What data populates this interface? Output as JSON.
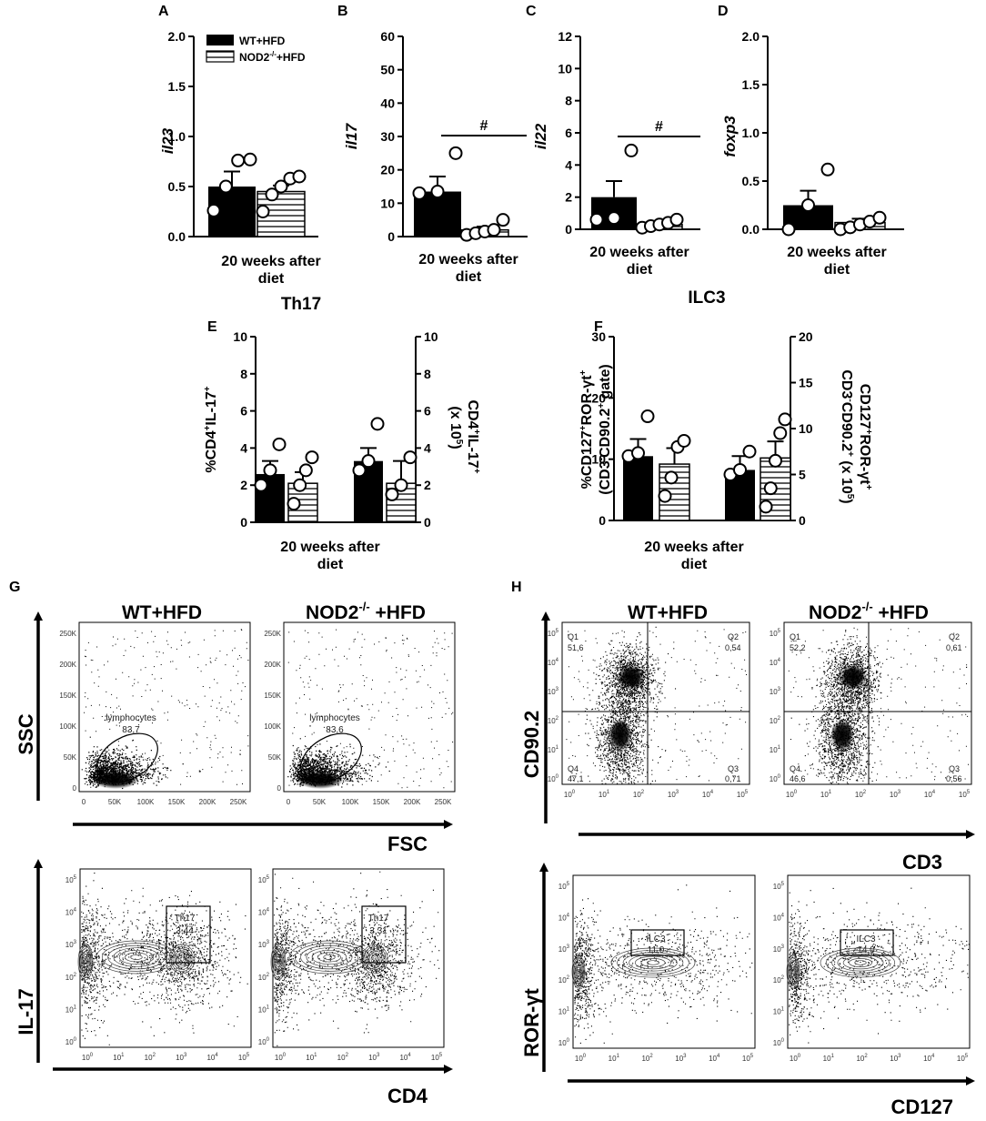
{
  "legend": {
    "wt": "WT+HFD",
    "nod2": "NOD2",
    "nod2_sup": "-/-",
    "nod2_tail": "+HFD"
  },
  "group_label": {
    "line1": "20 weeks after",
    "line2": "diet"
  },
  "significance": "#",
  "titles": {
    "th17": "Th17",
    "ilc3": "ILC3"
  },
  "flow": {
    "g": {
      "col1": "WT+HFD",
      "col2_main": "NOD2",
      "col2_sup": "-/-",
      "col2_tail": " +HFD",
      "axis_ssc": "SSC",
      "axis_fsc": "FSC",
      "axis_il17": "IL-17",
      "axis_cd4": "CD4",
      "scatter_ticks_y": [
        "0",
        "50K",
        "100K",
        "150K",
        "200K",
        "250K"
      ],
      "scatter_ticks_x": [
        "0",
        "50K",
        "100K",
        "150K",
        "200K",
        "250K"
      ],
      "gate_lym": "lymphocytes",
      "lym_wt": "83,7",
      "lym_nod2": "83,6",
      "gate_th17": "Th17",
      "th17_wt": "3,44",
      "th17_nod2": "3,31"
    },
    "h": {
      "col1": "WT+HFD",
      "col2_main": "NOD2",
      "col2_sup": "-/-",
      "col2_tail": " +HFD",
      "axis_cd90": "CD90.2",
      "axis_cd3": "CD3",
      "axis_ror": "ROR-γt",
      "axis_cd127": "CD127",
      "wt_q": {
        "q1": "Q1",
        "q1v": "51,6",
        "q2": "Q2",
        "q2v": "0,54",
        "q3": "Q3",
        "q3v": "0,71",
        "q4": "Q4",
        "q4v": "47,1"
      },
      "nod2_q": {
        "q1": "Q1",
        "q1v": "52,2",
        "q2": "Q2",
        "q2v": "0,61",
        "q3": "Q3",
        "q3v": "0,56",
        "q4": "Q4",
        "q4v": "46,6"
      },
      "gate_ilc3": "ILC3",
      "ilc3_wt": "11,0",
      "ilc3_nod2": "14,0"
    },
    "log_ticks": [
      {
        "b": "10",
        "e": "0"
      },
      {
        "b": "10",
        "e": "1"
      },
      {
        "b": "10",
        "e": "2"
      },
      {
        "b": "10",
        "e": "3"
      },
      {
        "b": "10",
        "e": "4"
      },
      {
        "b": "10",
        "e": "5"
      }
    ]
  },
  "chart_data": [
    {
      "panel": "A",
      "type": "bar",
      "ylabel": "il23",
      "ylim": [
        0,
        2.0
      ],
      "yticks": [
        "0.0",
        "0.5",
        "1.0",
        "1.5",
        "2.0"
      ],
      "series": [
        {
          "name": "WT+HFD",
          "values": [
            0.5
          ],
          "sem": 0.15,
          "points": [
            0.26,
            0.5,
            0.76,
            0.77
          ]
        },
        {
          "name": "NOD2-/-+HFD",
          "values": [
            0.45
          ],
          "sem": 0.06,
          "points": [
            0.25,
            0.42,
            0.5,
            0.58,
            0.6
          ]
        }
      ]
    },
    {
      "panel": "B",
      "type": "bar",
      "ylabel": "il17",
      "ylim": [
        0,
        60
      ],
      "yticks": [
        "0",
        "10",
        "20",
        "30",
        "40",
        "50",
        "60"
      ],
      "series": [
        {
          "name": "WT+HFD",
          "values": [
            13.5
          ],
          "sem": 4.5,
          "points": [
            13.0,
            13.5,
            25.0
          ]
        },
        {
          "name": "NOD2-/-+HFD",
          "values": [
            2.0
          ],
          "sem": 1.0,
          "points": [
            0.5,
            1.0,
            1.5,
            2.0,
            5.0
          ]
        }
      ],
      "annotation": "#"
    },
    {
      "panel": "C",
      "type": "bar",
      "ylabel": "il22",
      "ylim": [
        0,
        12
      ],
      "yticks": [
        "0",
        "2",
        "4",
        "6",
        "8",
        "10",
        "12"
      ],
      "series": [
        {
          "name": "WT+HFD",
          "values": [
            2.0
          ],
          "sem": 1.0,
          "points": [
            0.6,
            0.7,
            4.9
          ]
        },
        {
          "name": "NOD2-/-+HFD",
          "values": [
            0.3
          ],
          "sem": 0.15,
          "points": [
            0.1,
            0.2,
            0.3,
            0.4,
            0.6
          ]
        }
      ],
      "annotation": "#"
    },
    {
      "panel": "D",
      "type": "bar",
      "ylabel": "foxp3",
      "ylim": [
        0,
        2.0
      ],
      "yticks": [
        "0.0",
        "0.5",
        "1.0",
        "1.5",
        "2.0"
      ],
      "series": [
        {
          "name": "WT+HFD",
          "values": [
            0.25
          ],
          "sem": 0.15,
          "points": [
            0.0,
            0.25,
            0.62
          ]
        },
        {
          "name": "NOD2-/-+HFD",
          "values": [
            0.07
          ],
          "sem": 0.04,
          "points": [
            0.0,
            0.02,
            0.05,
            0.08,
            0.12
          ]
        }
      ]
    },
    {
      "panel": "E",
      "type": "bar",
      "ylabel_left": "%CD4+IL-17+",
      "ylabel_right": "CD4+IL-17+ (x 10^5)",
      "ylim": [
        0,
        10
      ],
      "ylim_right": [
        0,
        10
      ],
      "yticks": [
        "0",
        "2",
        "4",
        "6",
        "8",
        "10"
      ],
      "yticks_right": [
        "0",
        "2",
        "4",
        "6",
        "8",
        "10"
      ],
      "series": [
        {
          "name": "WT+HFD (%)",
          "values": [
            2.6
          ],
          "sem": 0.7,
          "points": [
            2.0,
            2.8,
            4.2
          ]
        },
        {
          "name": "NOD2-/-+HFD (%)",
          "values": [
            2.1
          ],
          "sem": 0.6,
          "points": [
            1.0,
            2.0,
            2.8,
            3.5
          ]
        },
        {
          "name": "WT+HFD (x10^5)",
          "values": [
            3.3
          ],
          "sem": 0.7,
          "points": [
            2.8,
            3.3,
            5.3
          ]
        },
        {
          "name": "NOD2-/-+HFD (x10^5)",
          "values": [
            2.1
          ],
          "sem": 1.2,
          "points": [
            1.5,
            2.0,
            3.5
          ]
        }
      ]
    },
    {
      "panel": "F",
      "type": "bar",
      "ylabel_left": "%CD127+ROR-γt+ (CD3-CD90.2+ gate)",
      "ylabel_right": "CD127+ROR-γt+ CD3-CD90.2+ (x 10^5)",
      "ylim": [
        0,
        30
      ],
      "ylim_right": [
        0,
        20
      ],
      "yticks": [
        "0",
        "10",
        "20",
        "30"
      ],
      "yticks_right": [
        "0",
        "5",
        "10",
        "15",
        "20"
      ],
      "series": [
        {
          "name": "WT+HFD (%)",
          "values": [
            10.5
          ],
          "sem": 2.8,
          "points": [
            10.5,
            11.0,
            17.0
          ]
        },
        {
          "name": "NOD2-/-+HFD (%)",
          "values": [
            9.2
          ],
          "sem": 2.6,
          "points": [
            4.0,
            7.0,
            12.0,
            13.0
          ]
        },
        {
          "name": "WT+HFD (x10^5)",
          "values": [
            5.5
          ],
          "sem": 1.5,
          "points": [
            5.0,
            5.5,
            7.5
          ]
        },
        {
          "name": "NOD2-/-+HFD (x10^5)",
          "values": [
            6.8
          ],
          "sem": 1.8,
          "points": [
            1.5,
            3.5,
            6.5,
            9.5,
            11.0
          ]
        }
      ]
    }
  ]
}
